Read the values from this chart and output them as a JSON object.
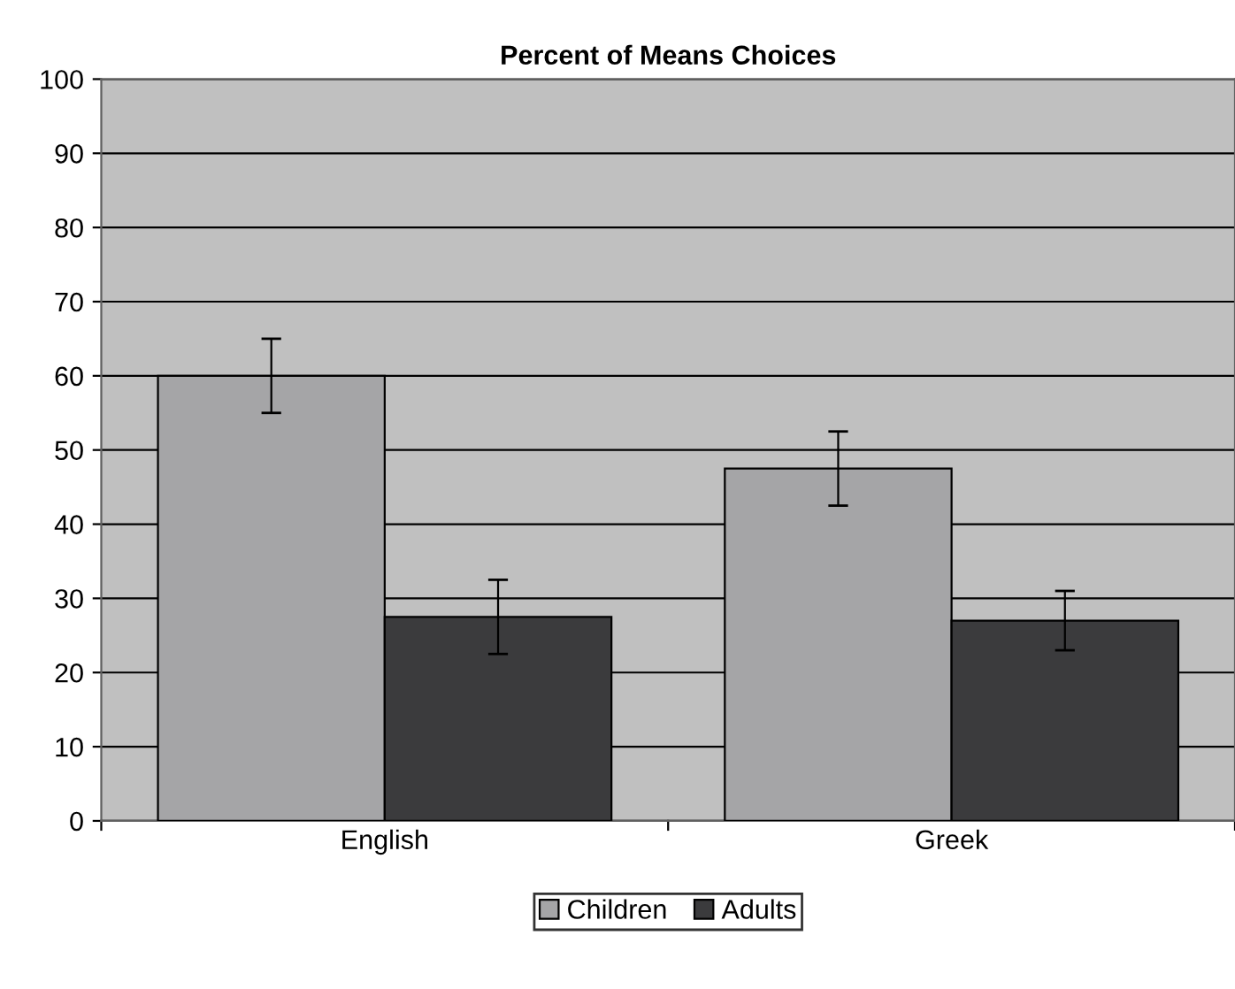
{
  "chart_data": {
    "type": "bar",
    "title": "Percent of Means Choices",
    "categories": [
      "English",
      "Greek"
    ],
    "series": [
      {
        "name": "Children",
        "color": "#a5a5a7",
        "values": [
          60,
          47.5
        ],
        "errors": [
          5,
          5
        ]
      },
      {
        "name": "Adults",
        "color": "#3b3b3d",
        "values": [
          27.5,
          27
        ],
        "errors": [
          5,
          4
        ]
      }
    ],
    "ylim": [
      0,
      100
    ],
    "yticks": [
      0,
      10,
      20,
      30,
      40,
      50,
      60,
      70,
      80,
      90,
      100
    ],
    "grid": "y",
    "legend": "bottom"
  }
}
